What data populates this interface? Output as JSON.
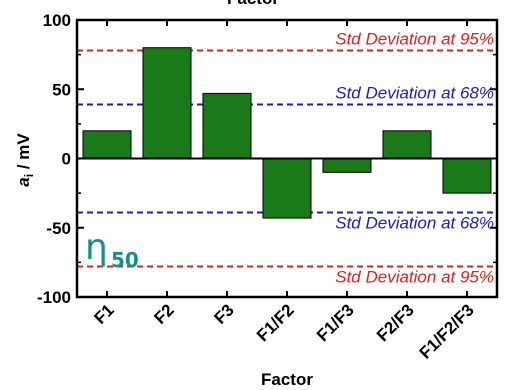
{
  "chart_data": {
    "type": "bar",
    "top_label": "Factor",
    "categories": [
      "F1",
      "F2",
      "F3",
      "F1/F2",
      "F1/F3",
      "F2/F3",
      "F1/F2/F3"
    ],
    "values": [
      20,
      80,
      47,
      -43,
      -10,
      20,
      -25
    ],
    "bar_color": "#1a7a1a",
    "xlabel": "Factor",
    "ylabel_main": "a",
    "ylabel_sub": "i",
    "ylabel_rest": " / mV",
    "ylim": [
      -100,
      100
    ],
    "yticks": [
      -100,
      -50,
      0,
      50,
      100
    ],
    "ytick_labels": [
      "-100",
      "-50",
      "0",
      "50",
      "100"
    ],
    "reference_lines": [
      {
        "value": 78,
        "label": "Std Deviation at 95%",
        "color": "#e02020",
        "label_pos": "above"
      },
      {
        "value": 39,
        "label": "Std Deviation at 68%",
        "color": "#1a1ad0",
        "label_pos": "above"
      },
      {
        "value": -39,
        "label": "Std Deviation at 68%",
        "color": "#1a1ad0",
        "label_pos": "below"
      },
      {
        "value": -78,
        "label": "Std Deviation at 95%",
        "color": "#e02020",
        "label_pos": "below"
      }
    ],
    "annotation": {
      "symbol": "η",
      "subscript": "50",
      "color": "#15908a"
    },
    "grid": false,
    "legend": "none"
  }
}
